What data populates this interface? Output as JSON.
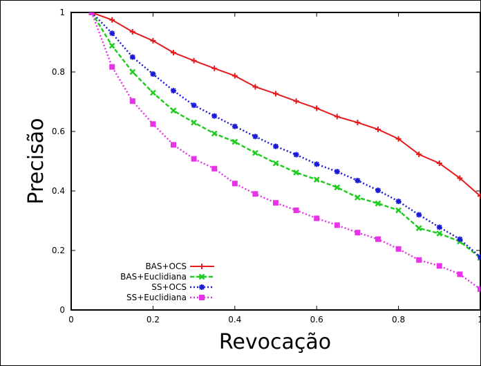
{
  "chart_data": {
    "type": "line",
    "title": "",
    "xlabel": "Revocação",
    "ylabel": "Precisão",
    "xlim": [
      0,
      1
    ],
    "ylim": [
      0,
      1
    ],
    "x_ticks": [
      "0",
      "0.2",
      "0.4",
      "0.6",
      "0.8",
      "1"
    ],
    "y_ticks": [
      "0",
      "0.2",
      "0.4",
      "0.6",
      "0.8",
      "1"
    ],
    "grid": false,
    "legend_position": "bottom-left",
    "x": [
      0.05,
      0.1,
      0.15,
      0.2,
      0.25,
      0.3,
      0.35,
      0.4,
      0.45,
      0.5,
      0.55,
      0.6,
      0.65,
      0.7,
      0.75,
      0.8,
      0.85,
      0.9,
      0.95,
      1.0
    ],
    "series": [
      {
        "name": "BAS+OCS",
        "color": "#e41a1c",
        "marker": "plus",
        "dash": "solid",
        "values": [
          1.0,
          0.975,
          0.935,
          0.905,
          0.865,
          0.838,
          0.812,
          0.787,
          0.75,
          0.727,
          0.702,
          0.678,
          0.65,
          0.63,
          0.607,
          0.575,
          0.523,
          0.493,
          0.443,
          0.383
        ]
      },
      {
        "name": "BAS+Euclidiana",
        "color": "#1fcc1f",
        "marker": "x",
        "dash": "dashed",
        "values": [
          1.0,
          0.888,
          0.8,
          0.73,
          0.67,
          0.63,
          0.593,
          0.565,
          0.528,
          0.493,
          0.462,
          0.438,
          0.412,
          0.378,
          0.358,
          0.335,
          0.275,
          0.257,
          0.23,
          0.175
        ]
      },
      {
        "name": "SS+OCS",
        "color": "#1a1ad6",
        "marker": "star",
        "dash": "dotted",
        "values": [
          1.0,
          0.93,
          0.85,
          0.793,
          0.737,
          0.688,
          0.652,
          0.617,
          0.583,
          0.55,
          0.522,
          0.49,
          0.465,
          0.435,
          0.402,
          0.365,
          0.32,
          0.278,
          0.238,
          0.178
        ]
      },
      {
        "name": "SS+Euclidiana",
        "color": "#e633e6",
        "marker": "square",
        "dash": "dotted",
        "values": [
          1.0,
          0.817,
          0.702,
          0.625,
          0.555,
          0.508,
          0.475,
          0.425,
          0.39,
          0.36,
          0.335,
          0.308,
          0.285,
          0.26,
          0.238,
          0.205,
          0.168,
          0.148,
          0.12,
          0.07
        ]
      }
    ]
  }
}
